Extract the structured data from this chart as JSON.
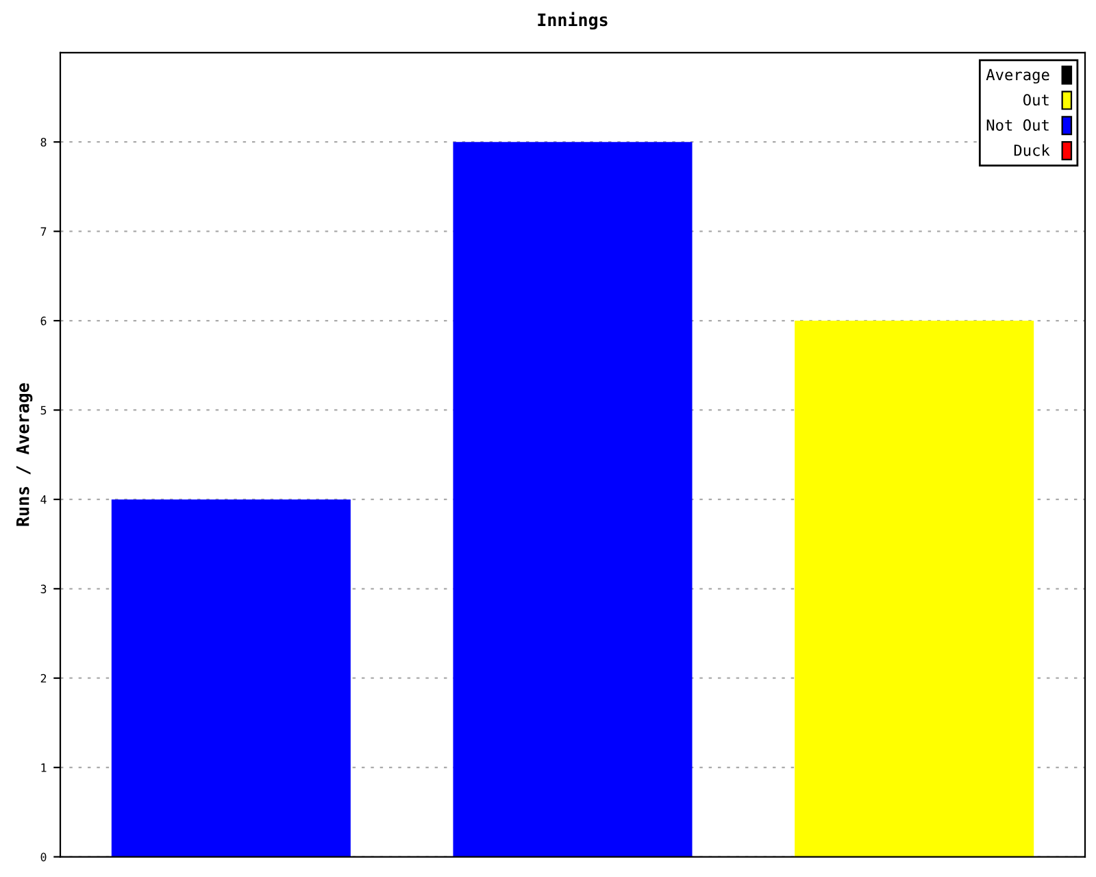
{
  "chart_data": {
    "type": "bar",
    "title": "Innings",
    "ylabel": "Runs / Average",
    "categories": [
      null,
      null,
      null
    ],
    "series": [
      {
        "name": "Average",
        "color": "#000000",
        "values": [
          null,
          null,
          null
        ]
      },
      {
        "name": "Out",
        "color": "#ffff00",
        "values": [
          null,
          null,
          6
        ]
      },
      {
        "name": "Not Out",
        "color": "#0000ff",
        "values": [
          4,
          8,
          null
        ]
      },
      {
        "name": "Duck",
        "color": "#ff0000",
        "values": [
          null,
          null,
          null
        ]
      }
    ],
    "ylim": [
      0,
      9
    ],
    "yticks": [
      0,
      1,
      2,
      3,
      4,
      5,
      6,
      7,
      8
    ],
    "grid": "y",
    "legend": "top right"
  }
}
